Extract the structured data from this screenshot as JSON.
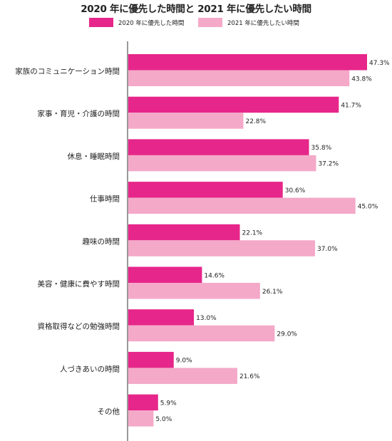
{
  "chart_data": {
    "type": "bar",
    "orientation": "horizontal",
    "title": "2020 年に優先した時間と 2021 年に優先したい時間",
    "categories": [
      "家族のコミュニケーション時間",
      "家事・育児・介護の時間",
      "休息・睡眠時間",
      "仕事時間",
      "趣味の時間",
      "美容・健康に費やす時間",
      "資格取得などの勉強時間",
      "人づきあいの時間",
      "その他"
    ],
    "series": [
      {
        "name": "2020 年に優先した時間",
        "color": "#e6268a",
        "values": [
          47.3,
          41.7,
          35.8,
          30.6,
          22.1,
          14.6,
          13.0,
          9.0,
          5.9
        ],
        "labels": [
          "47.3%",
          "41.7%",
          "35.8%",
          "30.6%",
          "22.1%",
          "14.6%",
          "13.0%",
          "9.0%",
          "5.9%"
        ]
      },
      {
        "name": "2021 年に優先したい時間",
        "color": "#f4a9c8",
        "values": [
          43.8,
          22.8,
          37.2,
          45.0,
          37.0,
          26.1,
          29.0,
          21.6,
          5.0
        ],
        "labels": [
          "43.8%",
          "22.8%",
          "37.2%",
          "45.0%",
          "37.0%",
          "26.1%",
          "29.0%",
          "21.6%",
          "5.0%"
        ]
      }
    ],
    "xlim": [
      0,
      50
    ],
    "grid": false,
    "legend_position": "top"
  }
}
